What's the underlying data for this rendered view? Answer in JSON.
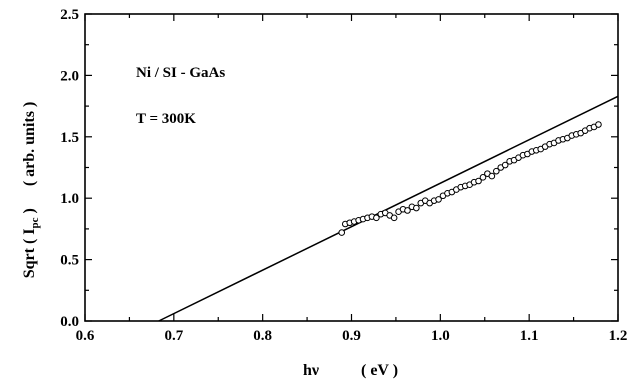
{
  "chart_data": {
    "type": "scatter",
    "title": "",
    "xlabel": {
      "main": "hν",
      "unit": "( eV )"
    },
    "ylabel": {
      "prefix": "Sqrt ( I",
      "subscript": "pc",
      "suffix": " )",
      "unit": "( arb. units )"
    },
    "xlim": [
      0.6,
      1.2
    ],
    "ylim": [
      0.0,
      2.5
    ],
    "x_ticks": [
      "0.6",
      "0.7",
      "0.8",
      "0.9",
      "1.0",
      "1.1",
      "1.2"
    ],
    "y_ticks": [
      "0.0",
      "0.5",
      "1.0",
      "1.5",
      "2.0",
      "2.5"
    ],
    "grid": false,
    "annotations": [
      "Ni / SI - GaAs",
      "T = 300K"
    ],
    "series": [
      {
        "marker": "open-circle",
        "x": [
          0.889,
          0.893,
          0.898,
          0.903,
          0.908,
          0.913,
          0.918,
          0.923,
          0.928,
          0.933,
          0.938,
          0.943,
          0.948,
          0.953,
          0.958,
          0.963,
          0.968,
          0.973,
          0.978,
          0.983,
          0.988,
          0.993,
          0.998,
          1.003,
          1.008,
          1.013,
          1.018,
          1.023,
          1.028,
          1.033,
          1.038,
          1.043,
          1.048,
          1.053,
          1.058,
          1.063,
          1.068,
          1.073,
          1.078,
          1.083,
          1.088,
          1.093,
          1.098,
          1.103,
          1.108,
          1.113,
          1.118,
          1.123,
          1.128,
          1.133,
          1.138,
          1.143,
          1.148,
          1.153,
          1.158,
          1.163,
          1.168,
          1.173,
          1.178
        ],
        "y": [
          0.72,
          0.79,
          0.8,
          0.81,
          0.82,
          0.83,
          0.84,
          0.85,
          0.84,
          0.87,
          0.88,
          0.86,
          0.84,
          0.89,
          0.91,
          0.9,
          0.93,
          0.92,
          0.96,
          0.98,
          0.96,
          0.98,
          0.99,
          1.02,
          1.04,
          1.05,
          1.07,
          1.09,
          1.1,
          1.11,
          1.13,
          1.14,
          1.17,
          1.2,
          1.18,
          1.22,
          1.25,
          1.27,
          1.3,
          1.31,
          1.33,
          1.35,
          1.36,
          1.38,
          1.39,
          1.4,
          1.42,
          1.44,
          1.45,
          1.47,
          1.48,
          1.49,
          1.51,
          1.52,
          1.53,
          1.55,
          1.57,
          1.58,
          1.6
        ]
      },
      {
        "marker": "line",
        "x": [
          0.683,
          1.2
        ],
        "y": [
          0.0,
          1.83
        ]
      }
    ]
  }
}
